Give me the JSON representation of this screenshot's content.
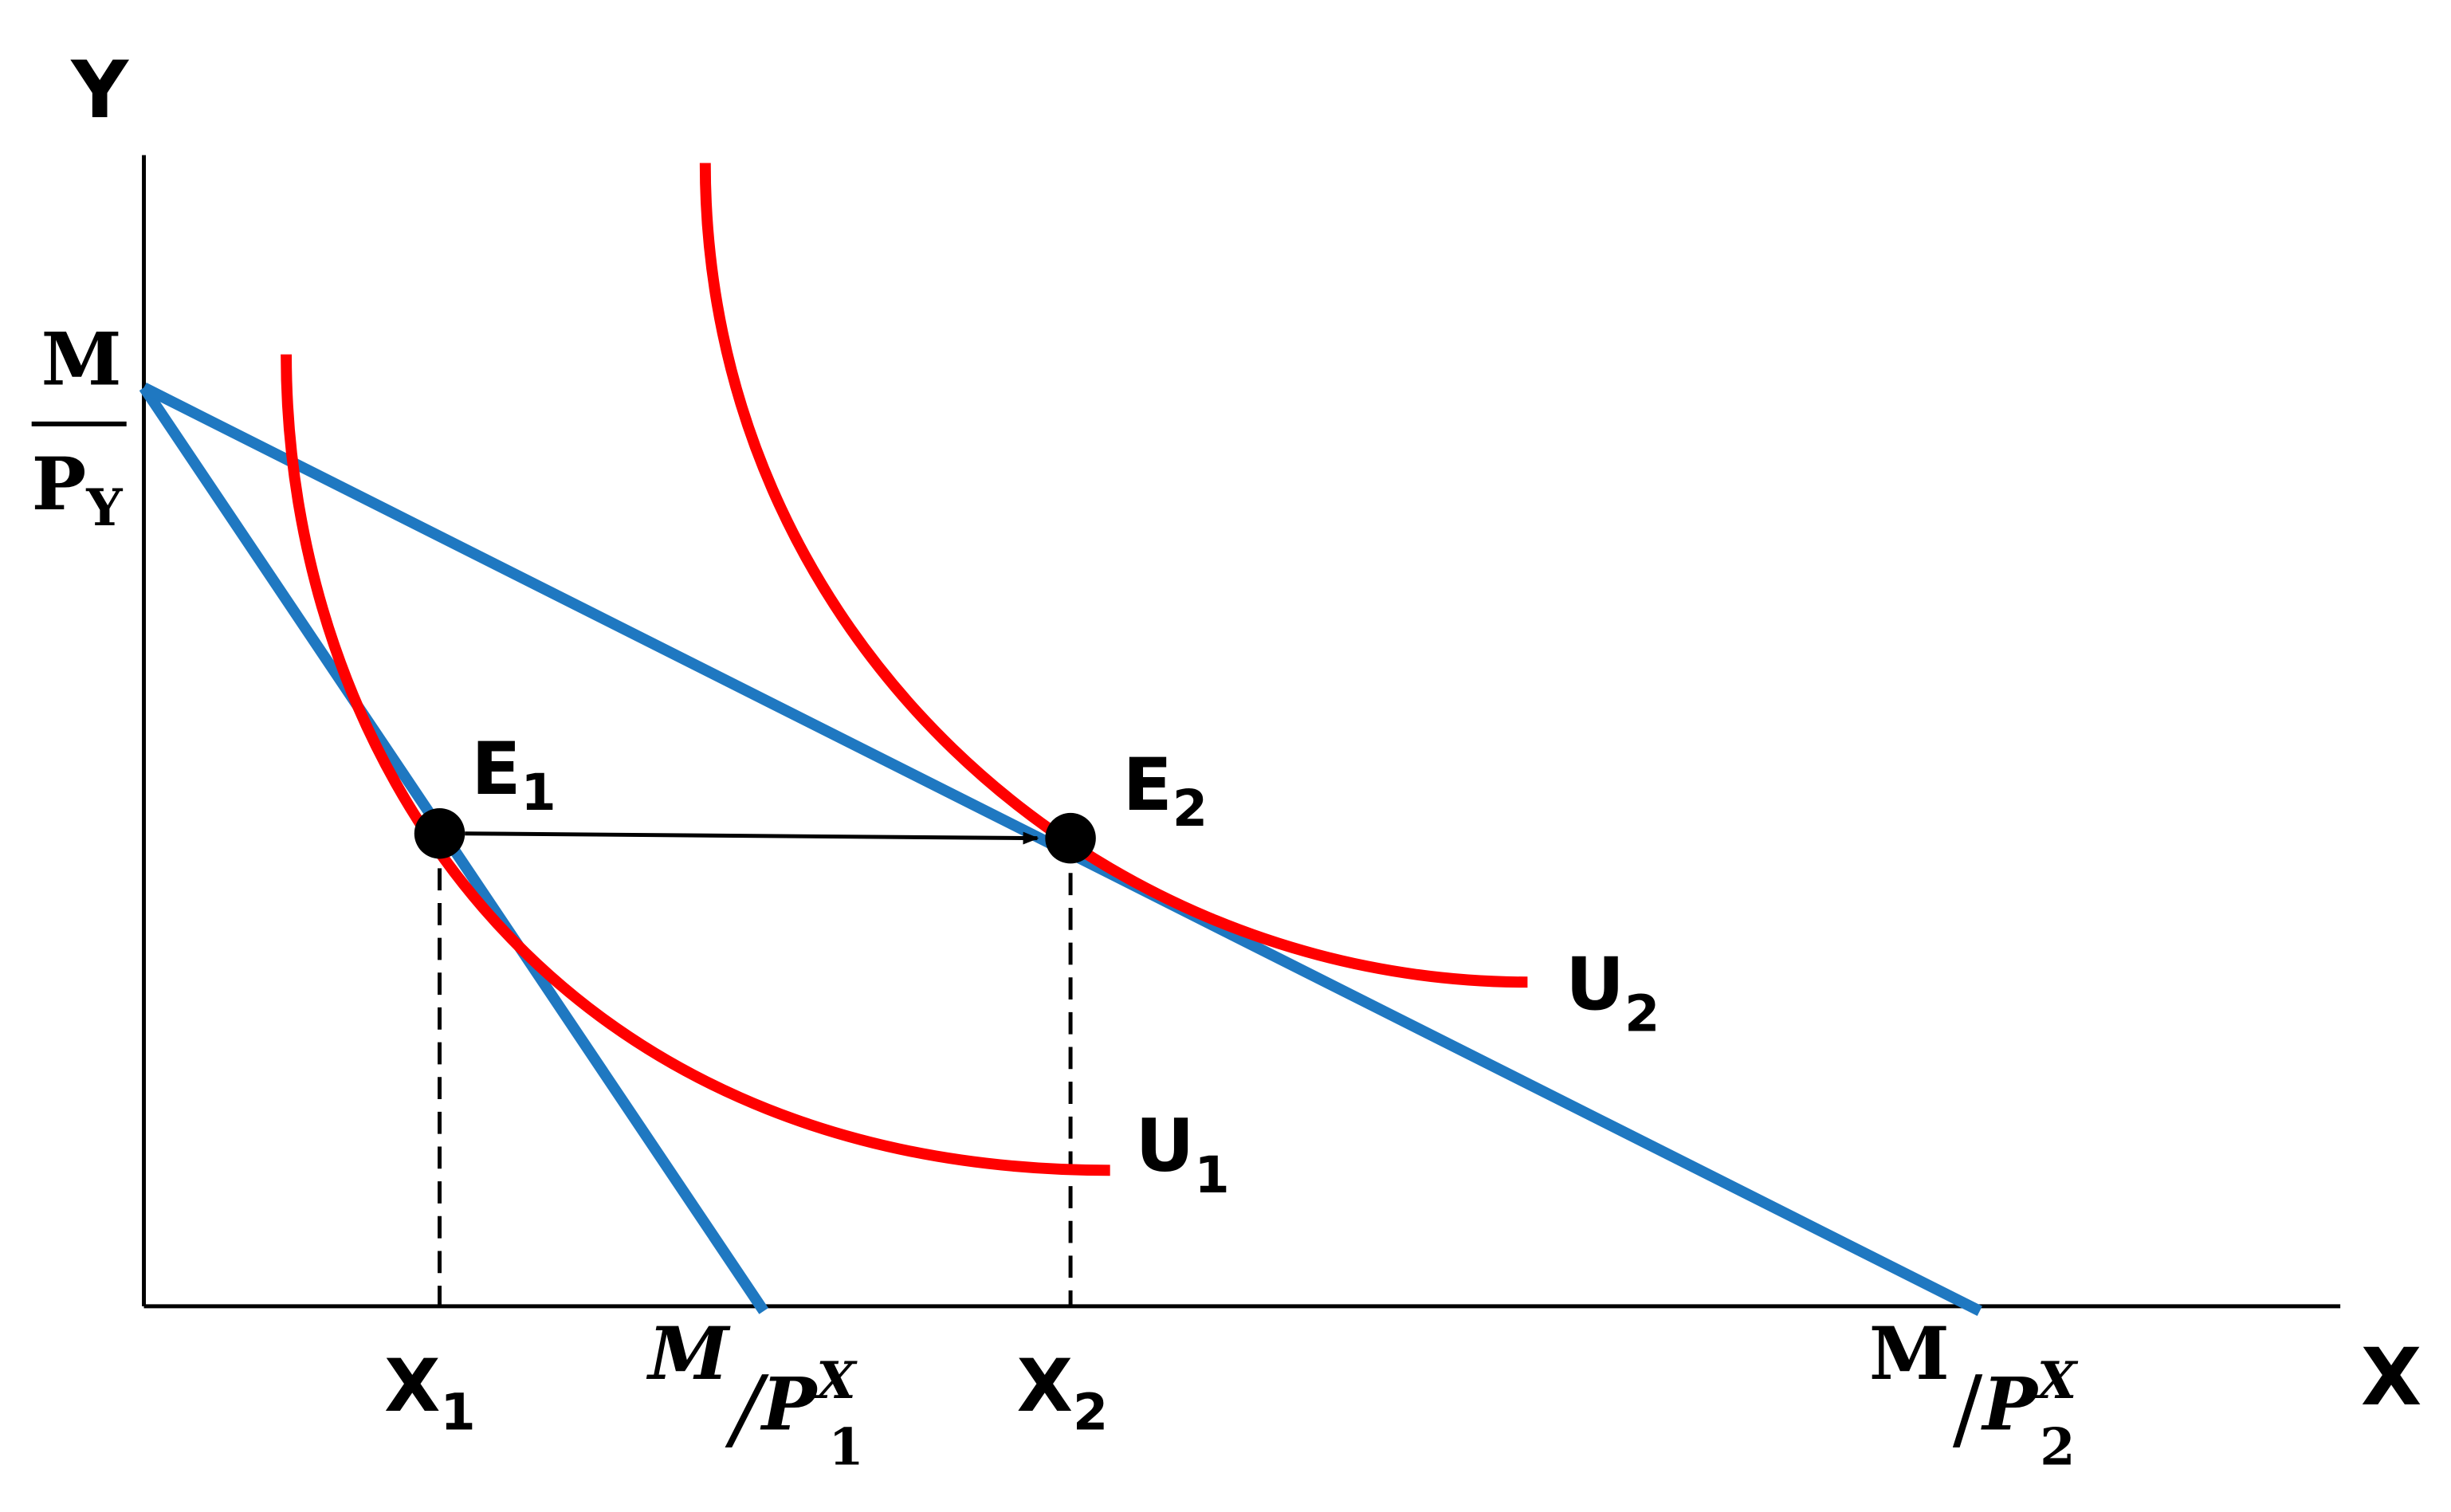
{
  "axes": {
    "y_label": "Y",
    "x_label": "X"
  },
  "y_intercept": {
    "numerator": "M",
    "denominator": "P",
    "denominator_sub": "Y"
  },
  "points": [
    {
      "label": "E",
      "sub": "1"
    },
    {
      "label": "E",
      "sub": "2"
    }
  ],
  "curves": [
    {
      "label": "U",
      "sub": "1"
    },
    {
      "label": "U",
      "sub": "2"
    }
  ],
  "x_marks": [
    {
      "label": "X",
      "sub": "1"
    },
    {
      "label": "X",
      "sub": "2"
    }
  ],
  "x_intercepts": [
    {
      "numerator": "M",
      "slash": "/",
      "denominator": "P",
      "sup": "X",
      "sub": "1"
    },
    {
      "numerator": "M",
      "slash": "/",
      "denominator": "P",
      "sup": "X",
      "sub": "2"
    }
  ]
}
